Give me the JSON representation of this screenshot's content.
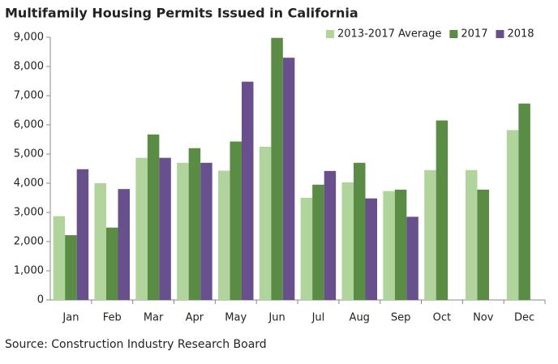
{
  "chart_data": {
    "type": "bar",
    "title": "Multifamily Housing Permits Issued in California",
    "source": "Source: Construction Industry Research Board",
    "categories": [
      "Jan",
      "Feb",
      "Mar",
      "Apr",
      "May",
      "Jun",
      "Jul",
      "Aug",
      "Sep",
      "Oct",
      "Nov",
      "Dec"
    ],
    "series": [
      {
        "name": "2013-2017 Average",
        "color": "#b0d49c",
        "values": [
          2870,
          4000,
          4870,
          4700,
          4430,
          5250,
          3500,
          4030,
          3730,
          4450,
          4450,
          5820
        ]
      },
      {
        "name": "2017",
        "color": "#5b8c45",
        "values": [
          2220,
          2480,
          5670,
          5200,
          5430,
          8980,
          3950,
          4700,
          3780,
          6150,
          3780,
          6730
        ]
      },
      {
        "name": "2018",
        "color": "#67508c",
        "values": [
          4480,
          3800,
          4870,
          4700,
          7480,
          8300,
          4420,
          3480,
          2850,
          null,
          null,
          null
        ]
      }
    ],
    "ylim": [
      0,
      9000
    ],
    "yticks": [
      0,
      {
        "value": 1000,
        "label": "1,000"
      },
      {
        "value": 2000,
        "label": "2,000"
      },
      {
        "value": 3000,
        "label": "3,000"
      },
      {
        "value": 4000,
        "label": "4,000"
      },
      {
        "value": 5000,
        "label": "5,000"
      },
      {
        "value": 6000,
        "label": "6,000"
      },
      {
        "value": 7000,
        "label": "7,000"
      },
      {
        "value": 8000,
        "label": "8,000"
      },
      {
        "value": 9000,
        "label": "9,000"
      }
    ],
    "legend": "top-right",
    "grid": false
  }
}
